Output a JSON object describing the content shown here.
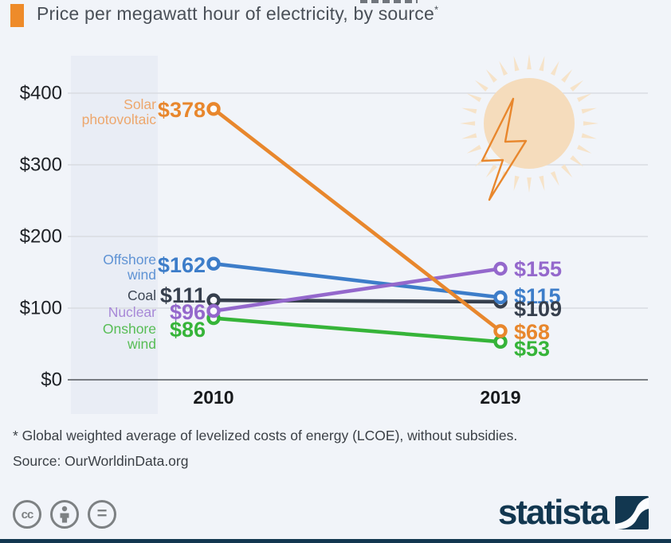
{
  "page": {
    "background": "#f1f4f9",
    "bottom_bar_color": "#123750"
  },
  "header": {
    "title": "Price per megawatt hour of electricity, by source",
    "asterisk": "*",
    "accent_color": "#ee8b2a"
  },
  "chart_data": {
    "type": "line",
    "subtype": "slope",
    "title": "Price per megawatt hour of electricity, by source*",
    "categories": [
      "2010",
      "2019"
    ],
    "ylim": [
      0,
      430
    ],
    "grid": true,
    "yticks": [
      {
        "label": "$400",
        "value": 400
      },
      {
        "label": "$300",
        "value": 300
      },
      {
        "label": "$200",
        "value": 200
      },
      {
        "label": "$100",
        "value": 100
      },
      {
        "label": "$0",
        "value": 0
      }
    ],
    "series": [
      {
        "name": "Solar photovoltaic",
        "name_lines": [
          "Solar",
          "photovoltaic"
        ],
        "values": [
          378,
          68
        ],
        "value_labels": [
          "$378",
          "$68"
        ],
        "color": "#e8872d",
        "label_color": "#eda76d"
      },
      {
        "name": "Offshore wind",
        "name_lines": [
          "Offshore",
          "wind"
        ],
        "values": [
          162,
          115
        ],
        "value_labels": [
          "$162",
          "$115"
        ],
        "color": "#3d7dc9",
        "label_color": "#5f93d4"
      },
      {
        "name": "Coal",
        "name_lines": [
          "Coal"
        ],
        "values": [
          111,
          109
        ],
        "value_labels": [
          "$111",
          "$109"
        ],
        "color": "#363f4d",
        "label_color": "#3d4654"
      },
      {
        "name": "Nuclear",
        "name_lines": [
          "Nuclear"
        ],
        "values": [
          96,
          155
        ],
        "value_labels": [
          "$96",
          "$155"
        ],
        "color": "#9468cc",
        "label_color": "#a788d7"
      },
      {
        "name": "Onshore wind",
        "name_lines": [
          "Onshore",
          "wind"
        ],
        "values": [
          86,
          53
        ],
        "value_labels": [
          "$86",
          "$53"
        ],
        "color": "#36b439",
        "label_color": "#57bd55"
      }
    ],
    "draw_order": [
      "Coal",
      "Onshore wind",
      "Offshore wind",
      "Nuclear",
      "Solar photovoltaic"
    ],
    "colors": {
      "grid": "#d9dce2",
      "axis": "#53565c",
      "band": "#e9edf5",
      "tick_text": "#1e2126",
      "xlabel_text": "#17191c"
    },
    "legend_position": "left-labels"
  },
  "annotations": {
    "sun_icon": "sun-with-lightning-bolt",
    "sun_fill": "#f5dcbc",
    "ray_fill": "#f6e3c9",
    "bolt_color": "#e8872d"
  },
  "footer": {
    "footnote": "* Global weighted average of levelized costs of energy (LCOE), without subsidies.",
    "source": "Source: OurWorldinData.org"
  },
  "branding": {
    "logo_text": "statista",
    "cc_badges": [
      "cc",
      "attribution",
      "equal"
    ]
  }
}
